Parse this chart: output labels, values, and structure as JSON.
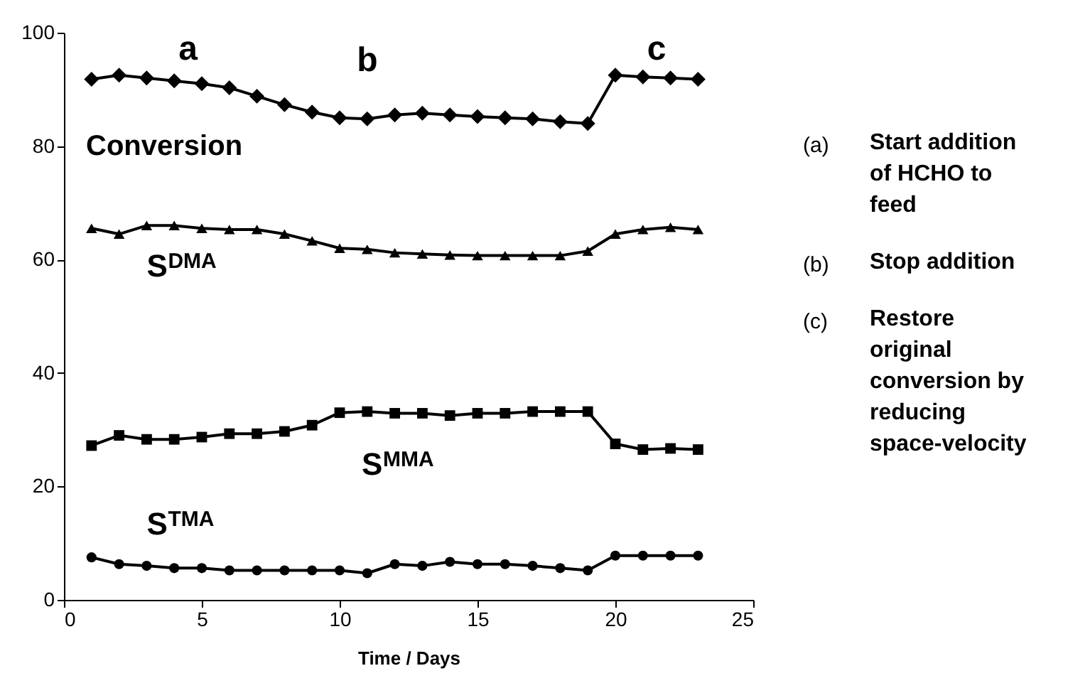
{
  "chart_data": {
    "type": "line",
    "xlabel": "Time / Days",
    "x": [
      1,
      2,
      3,
      4,
      5,
      6,
      7,
      8,
      9,
      10,
      11,
      12,
      13,
      14,
      15,
      16,
      17,
      18,
      19,
      20,
      21,
      22,
      23
    ],
    "series": [
      {
        "name": "Conversion",
        "color": "#000000",
        "marker": "diamond",
        "values": [
          91.8,
          92.5,
          92,
          91.5,
          91,
          90.3,
          88.8,
          87.3,
          86,
          85,
          84.8,
          85.5,
          85.8,
          85.5,
          85.2,
          85,
          84.8,
          84.3,
          84,
          92.5,
          92.2,
          92,
          91.8
        ]
      },
      {
        "name": "S$^{DMA}$",
        "color": "#000000",
        "marker": "triangle",
        "values": [
          65.5,
          64.5,
          66,
          66,
          65.5,
          65.3,
          65.3,
          64.5,
          63.3,
          62,
          61.8,
          61.2,
          61,
          60.8,
          60.7,
          60.7,
          60.7,
          60.7,
          61.5,
          64.5,
          65.3,
          65.7,
          65.3
        ]
      },
      {
        "name": "S$^{MMA}$",
        "color": "#000000",
        "marker": "square",
        "values": [
          27.2,
          29,
          28.3,
          28.3,
          28.7,
          29.3,
          29.3,
          29.7,
          30.8,
          33,
          33.2,
          32.9,
          32.9,
          32.5,
          32.9,
          32.9,
          33.2,
          33.2,
          33.2,
          27.5,
          26.5,
          26.7,
          26.5
        ]
      },
      {
        "name": "S$^{TMA}$",
        "color": "#000000",
        "marker": "circle",
        "values": [
          7.5,
          6.3,
          6,
          5.6,
          5.6,
          5.2,
          5.2,
          5.2,
          5.2,
          5.2,
          4.7,
          6.3,
          6,
          6.7,
          6.3,
          6.3,
          6,
          5.6,
          5.2,
          7.8,
          7.8,
          7.8,
          7.8
        ]
      }
    ],
    "xlim": [
      0,
      25
    ],
    "xticks": [
      0,
      5,
      10,
      15,
      20,
      25
    ],
    "ylim": [
      0,
      100
    ],
    "yticks": [
      0,
      20,
      40,
      60,
      80,
      100
    ],
    "grid": false,
    "line_style": "solid",
    "annotations": [
      "a",
      "b",
      "c",
      "(a) Start addition of HCHO to feed",
      "(b) Stop addition",
      "(c) Restore original conversion by reducing space-velocity"
    ]
  }
}
